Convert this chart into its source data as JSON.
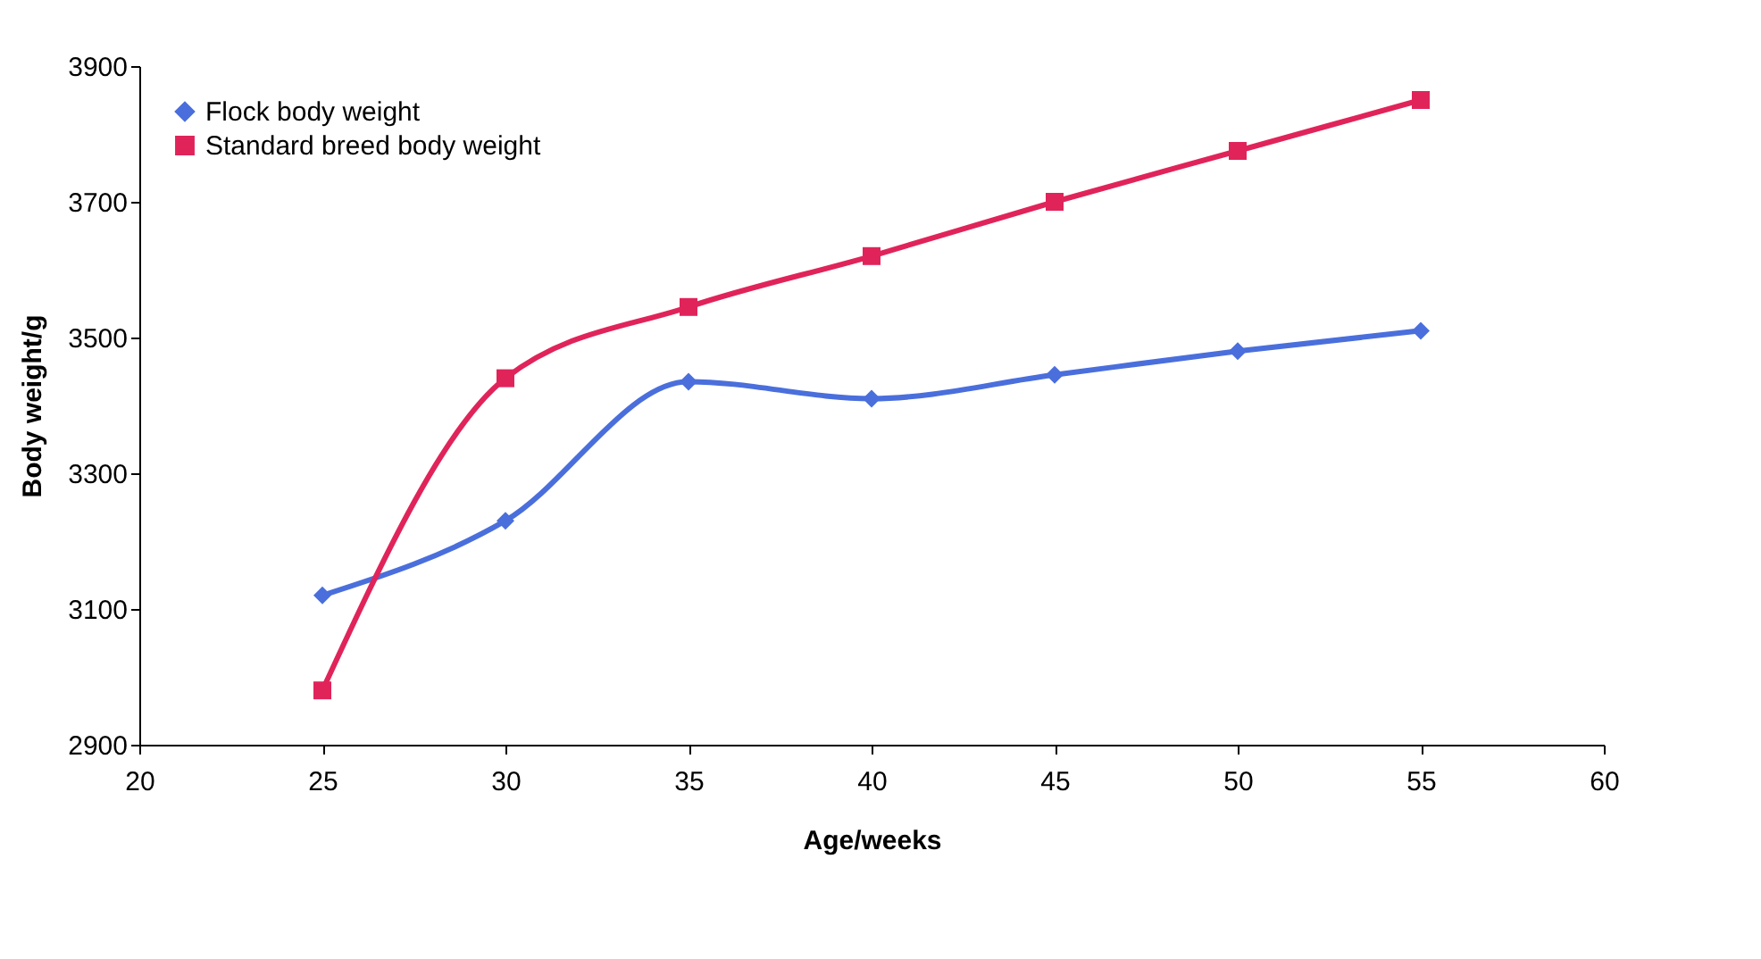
{
  "chart_data": {
    "type": "line",
    "xlabel": "Age/weeks",
    "ylabel": "Body weight/g",
    "x": [
      25,
      30,
      35,
      40,
      45,
      50,
      55
    ],
    "series": [
      {
        "name": "Flock body weight",
        "color": "#4a6fdc",
        "marker": "diamond",
        "values": [
          3120,
          3230,
          3435,
          3410,
          3445,
          3480,
          3510
        ]
      },
      {
        "name": "Standard breed body weight",
        "color": "#e0245a",
        "marker": "square",
        "values": [
          2980,
          3440,
          3545,
          3620,
          3700,
          3775,
          3850
        ]
      }
    ],
    "xlim": [
      20,
      60
    ],
    "xticks": [
      20,
      25,
      30,
      35,
      40,
      45,
      50,
      55,
      60
    ],
    "ylim": [
      2900,
      3900
    ],
    "yticks": [
      2900,
      3100,
      3300,
      3500,
      3700,
      3900
    ],
    "grid": false,
    "legend": "top left",
    "line_style": "solid"
  }
}
